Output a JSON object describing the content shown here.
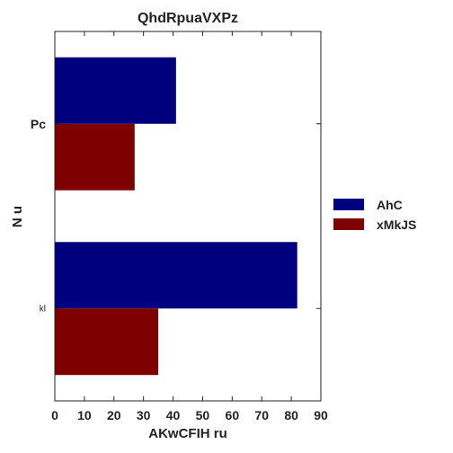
{
  "chart_data": {
    "type": "bar",
    "orientation": "horizontal",
    "title": "QhdRpuaVXPz",
    "xlabel": "AKwCFIH ru",
    "ylabel": "N u",
    "categories": [
      "Pc",
      "kl"
    ],
    "category_label_sizes": [
      "normal",
      "small"
    ],
    "xlim": [
      0,
      90
    ],
    "xticks": [
      0,
      10,
      20,
      30,
      40,
      50,
      60,
      70,
      80,
      90
    ],
    "grid": false,
    "legend_position": "right",
    "series": [
      {
        "name": "AhC",
        "color": "#00007f",
        "values": [
          41,
          82
        ]
      },
      {
        "name": "xMkJS",
        "color": "#7f0000",
        "values": [
          27,
          35
        ]
      }
    ]
  }
}
